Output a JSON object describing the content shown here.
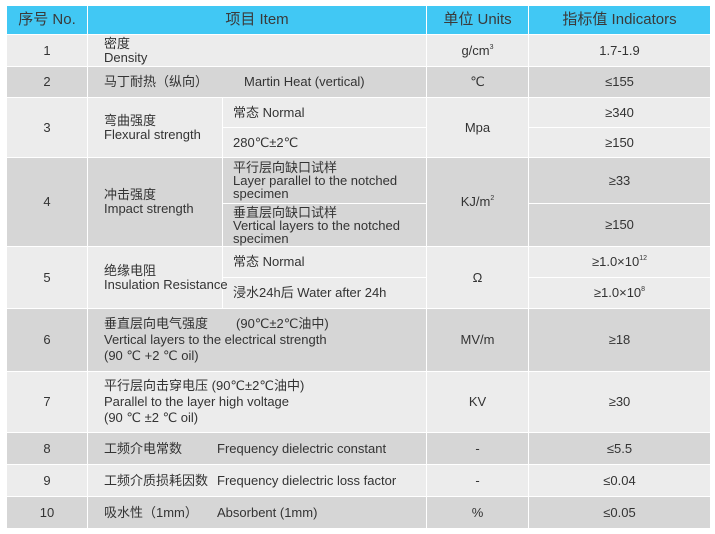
{
  "header": {
    "no": "序号 No.",
    "item": "项目  Item",
    "units": "单位  Units",
    "indicators": "指标值    Indicators"
  },
  "colors": {
    "header": "#41c8f4",
    "row_light": "#ececec",
    "row_dark": "#d6d6d6"
  },
  "rows": [
    {
      "no": "1",
      "zh": "密度",
      "en": "Density",
      "unit": "g/cm",
      "unit_sup": "3",
      "value": "1.7-1.9"
    },
    {
      "no": "2",
      "zh": "马丁耐热（纵向）",
      "en": "Martin Heat (vertical)",
      "unit": "℃",
      "value": "≤155"
    },
    {
      "no": "3",
      "zh": "弯曲强度",
      "en": "Flexural strength",
      "sub": [
        "常态   Normal",
        "280℃±2℃"
      ],
      "unit": "Mpa",
      "values": [
        "≥340",
        "≥150"
      ]
    },
    {
      "no": "4",
      "zh": "冲击强度",
      "en": "Impact strength",
      "sub_zh": [
        "平行层向缺口试样",
        "垂直层向缺口试样"
      ],
      "sub_en": [
        "Layer parallel to the notched specimen",
        "Vertical layers to the notched specimen"
      ],
      "unit": "KJ/m",
      "unit_sup": "2",
      "values": [
        "≥33",
        "≥150"
      ]
    },
    {
      "no": "5",
      "zh": "绝缘电阻",
      "en": "Insulation  Resistance",
      "sub": [
        "常态   Normal",
        "浸水24h后   Water after 24h"
      ],
      "unit": "Ω",
      "values": [
        "≥1.0×10",
        "≥1.0×10"
      ],
      "value_sups": [
        "12",
        "8"
      ]
    },
    {
      "no": "6",
      "zh": "垂直层向电气强度",
      "zh_cond": "(90℃±2℃油中)",
      "en": "Vertical layers to the electrical strength",
      "en_cond": "(90 ℃ +2 ℃ oil)",
      "unit": "MV/m",
      "value": "≥18"
    },
    {
      "no": "7",
      "zh": "平行层向击穿电压",
      "zh_cond": "(90℃±2℃油中)",
      "en": "Parallel to the layer high voltage",
      "en_cond": "(90 ℃ ±2 ℃ oil)",
      "unit": "KV",
      "value": "≥30"
    },
    {
      "no": "8",
      "zh": "工频介电常数",
      "en": "Frequency dielectric constant",
      "unit": "-",
      "value": "≤5.5"
    },
    {
      "no": "9",
      "zh": "工频介质损耗因数",
      "en": "Frequency dielectric loss factor",
      "unit": "-",
      "value": "≤0.04"
    },
    {
      "no": "10",
      "zh": "吸水性（1mm）",
      "en": "Absorbent (1mm)",
      "unit": "%",
      "value": "≤0.05"
    }
  ]
}
